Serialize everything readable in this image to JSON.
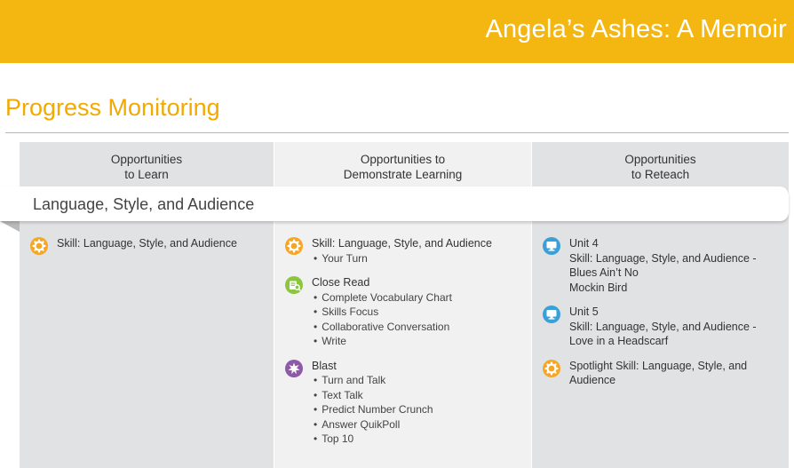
{
  "header": {
    "title": "Angela’s Ashes: A Memoir"
  },
  "section": {
    "title": "Progress Monitoring"
  },
  "columns": [
    {
      "heading": [
        "Opportunities",
        "to Learn"
      ]
    },
    {
      "heading": [
        "Opportunities to",
        "Demonstrate Learning"
      ]
    },
    {
      "heading": [
        "Opportunities",
        "to Reteach"
      ]
    }
  ],
  "row": {
    "label": "Language, Style, and Audience"
  },
  "learn": [
    {
      "icon": "gear-icon",
      "title": "Skill: Language, Style, and Audience"
    }
  ],
  "demonstrate": [
    {
      "icon": "gear-icon",
      "title": "Skill: Language, Style, and Audience",
      "bullets": [
        "Your Turn"
      ]
    },
    {
      "icon": "close-read-icon",
      "title": "Close Read",
      "bullets": [
        "Complete Vocabulary Chart",
        "Skills Focus",
        "Collaborative Conversation",
        "Write"
      ]
    },
    {
      "icon": "blast-icon",
      "title": "Blast",
      "bullets": [
        "Turn and Talk",
        "Text Talk",
        "Predict Number Crunch",
        "Answer QuikPoll",
        "Top 10"
      ]
    }
  ],
  "reteach": [
    {
      "icon": "monitor-icon",
      "title": "Unit 4",
      "lines": [
        "Skill: Language, Style, and Audience -",
        "Blues Ain’t No",
        "Mockin Bird"
      ]
    },
    {
      "icon": "monitor-icon",
      "title": "Unit 5",
      "lines": [
        "Skill: Language, Style, and Audience -",
        "Love in a Headscarf"
      ]
    },
    {
      "icon": "gear-icon",
      "title": "Spotlight Skill: Language, Style, and",
      "lines": [
        "Audience"
      ]
    }
  ],
  "colors": {
    "accent": "#f4b611",
    "gear": "#f6a623",
    "close_read": "#8cc63f",
    "blast": "#8e5aa8",
    "monitor": "#3aa0d8"
  }
}
